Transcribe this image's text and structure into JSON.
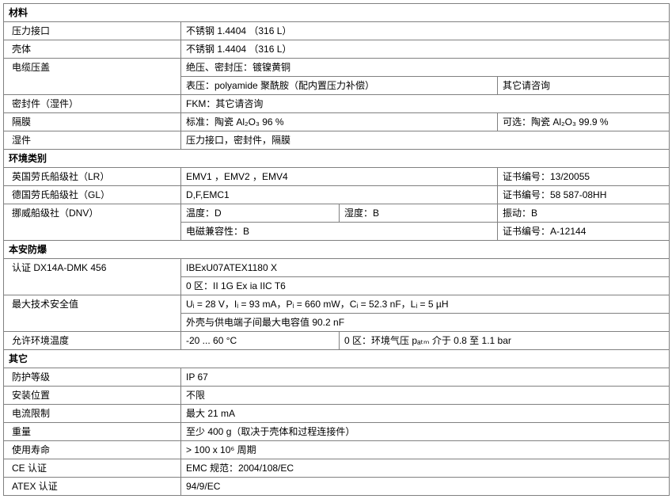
{
  "sections": {
    "materials": {
      "title": "材料",
      "pressure_port": {
        "label": "压力接口",
        "value": "不锈钢 1.4404 （316 L）"
      },
      "case": {
        "label": "壳体",
        "value": "不锈钢 1.4404 （316 L）"
      },
      "cable_gland": {
        "label": "电缆压盖",
        "line1": "绝压、密封压：镀镍黄铜",
        "line2a": "表压：polyamide 聚酰胺（配内置压力补偿）",
        "line2b": "其它请咨询"
      },
      "seal": {
        "label": "密封件（湿件）",
        "value": "FKM：其它请咨询"
      },
      "diaphragm": {
        "label": "隔膜",
        "std": "标准：陶瓷 Al₂O₃ 96 %",
        "opt": "可选：陶瓷 Al₂O₃ 99.9 %"
      },
      "wetted": {
        "label": "湿件",
        "value": "压力接口，密封件，隔膜"
      }
    },
    "env": {
      "title": "环境类别",
      "lr": {
        "label": "英国劳氏船级社（LR）",
        "col1": "EMV1 ，EMV2 ，EMV4",
        "cert": "证书编号：13/20055"
      },
      "gl": {
        "label": "德国劳氏船级社（GL）",
        "col1": "D,F,EMC1",
        "cert": "证书编号：58 587-08HH"
      },
      "dnv": {
        "label": "挪威船级社（DNV）",
        "temp": "温度：D",
        "hum": "湿度：B",
        "vib": "振动：B",
        "emc": "电磁兼容性：B",
        "cert": "证书编号：A-12144"
      }
    },
    "ex": {
      "title": "本安防爆",
      "approval": {
        "label": "认证  DX14A-DMK 456",
        "line1": "IBExU07ATEX1180 X",
        "line2": "0 区：II 1G Ex ia IIC T6"
      },
      "safety": {
        "label": "最大技术安全值",
        "line1": "Uᵢ = 28 V，Iᵢ = 93 mA，Pᵢ = 660 mW，Cᵢ = 52.3 nF，Lᵢ = 5 µH",
        "line2": "外壳与供电端子间最大电容值  90.2 nF"
      },
      "amb_temp": {
        "label": "允许环境温度",
        "col1": "-20 ... 60 °C",
        "col2": "0 区：环境气压 pₐₜₘ 介于 0.8 至  1.1 bar"
      }
    },
    "other": {
      "title": "其它",
      "ip": {
        "label": "防护等级",
        "value": "IP 67"
      },
      "mount": {
        "label": "安装位置",
        "value": "不限"
      },
      "current": {
        "label": "电流限制",
        "value": "最大 21 mA"
      },
      "weight": {
        "label": "重量",
        "value": "至少 400 g（取决于壳体和过程连接件）"
      },
      "life": {
        "label": "使用寿命",
        "value": "> 100 x 10⁶ 周期"
      },
      "ce": {
        "label": "CE 认证",
        "value": "EMC  规范：2004/108/EC"
      },
      "atex": {
        "label": "ATEX 认证",
        "value": "94/9/EC"
      }
    }
  }
}
